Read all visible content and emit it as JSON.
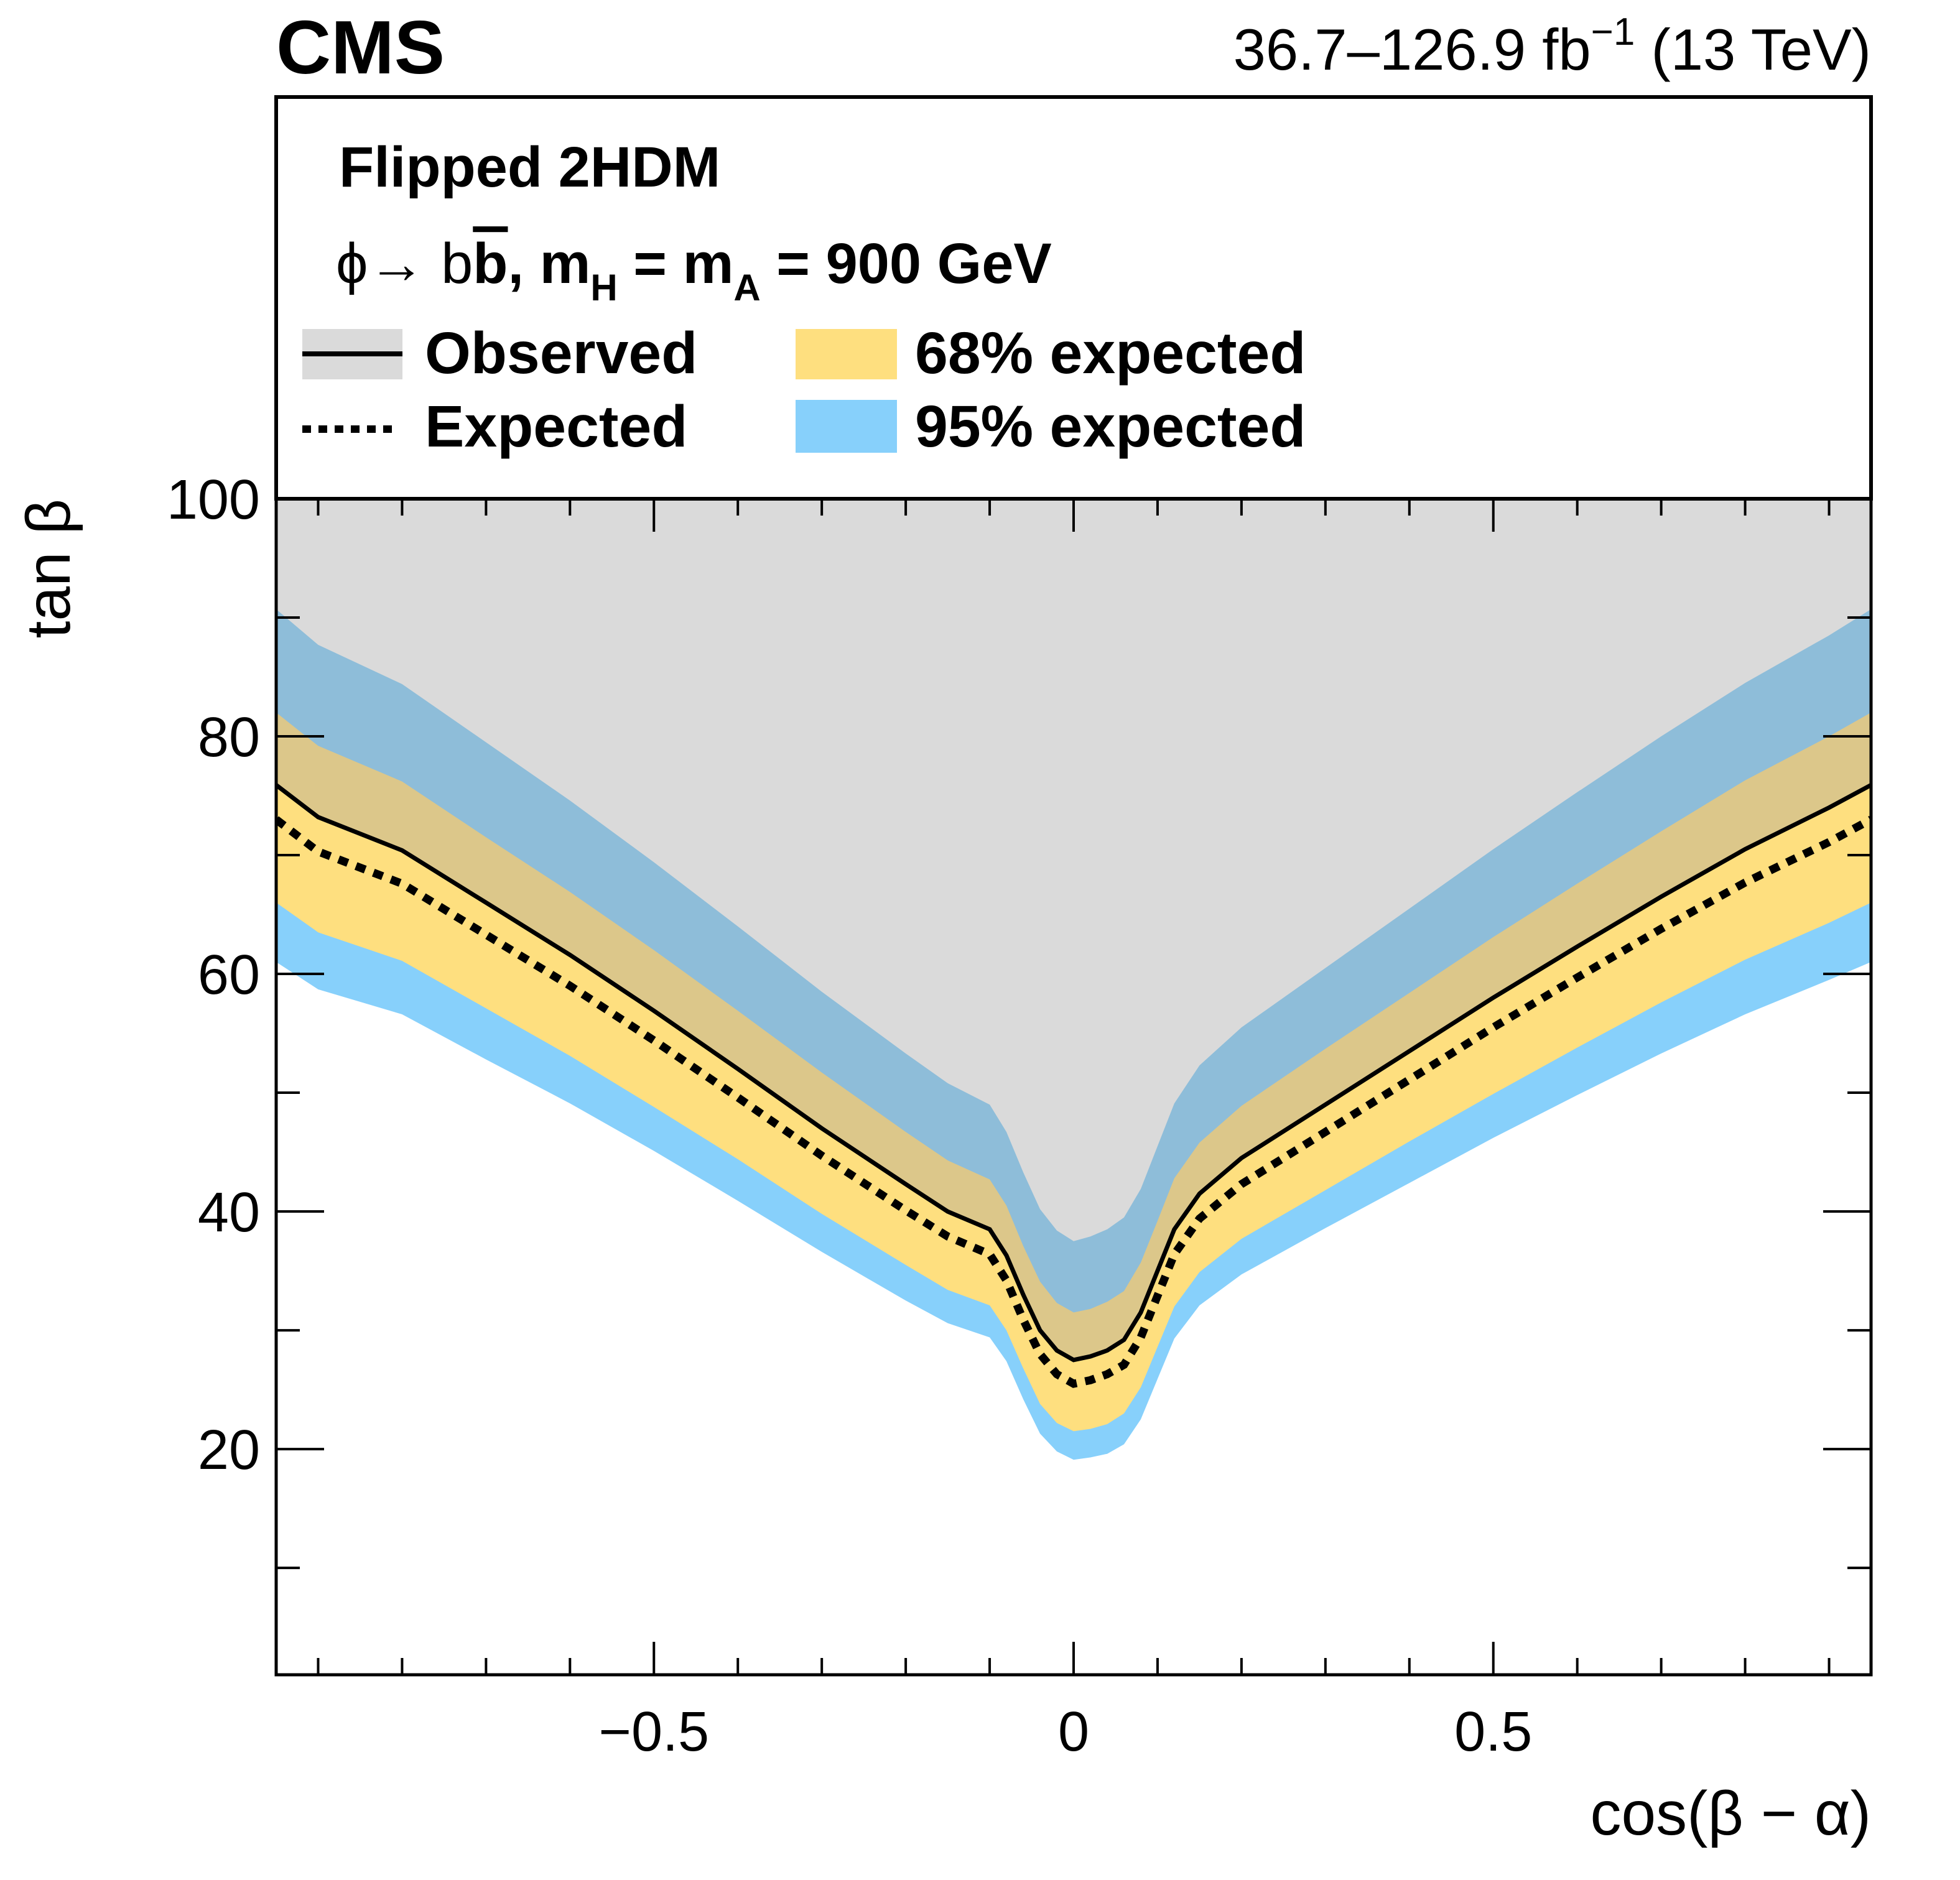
{
  "header": {
    "experiment": "CMS",
    "lumi_text": "36.7–126.9 fb",
    "lumi_sup": "−1",
    "energy": "(13 TeV)"
  },
  "legend": {
    "title": "Flipped 2HDM",
    "subtitle": {
      "part1": "ϕ→ b",
      "bbar": "b",
      "part2": ", m",
      "sub_h": "H",
      "part3": " = m",
      "sub_a": "A",
      "part4": " = 900 GeV"
    },
    "entries": [
      {
        "label": "Observed",
        "type": "line-solid-with-fill"
      },
      {
        "label": "Expected",
        "type": "line-dotted"
      },
      {
        "label": "68% expected",
        "type": "fill"
      },
      {
        "label": "95% expected",
        "type": "fill"
      }
    ]
  },
  "colors": {
    "excluded": "#dadada",
    "band68": "#fedf7f",
    "band95": "#87d0fb",
    "band68_excluded": "#dcc78a",
    "band95_excluded": "#8ebdd9",
    "line": "#000000"
  },
  "chart_data": {
    "type": "area",
    "title": "",
    "xlabel": "cos(β − α)",
    "ylabel": "tan β",
    "xlim": [
      -0.95,
      0.95
    ],
    "ylim": [
      1,
      100
    ],
    "xticks": [
      {
        "v": -0.5,
        "label": "−0.5"
      },
      {
        "v": 0,
        "label": "0"
      },
      {
        "v": 0.5,
        "label": "0.5"
      }
    ],
    "yticks": [
      {
        "v": 20,
        "label": "20"
      },
      {
        "v": 40,
        "label": "40"
      },
      {
        "v": 60,
        "label": "60"
      },
      {
        "v": 80,
        "label": "80"
      },
      {
        "v": 100,
        "label": "100"
      }
    ],
    "x": [
      -0.95,
      -0.9,
      -0.8,
      -0.7,
      -0.6,
      -0.5,
      -0.4,
      -0.3,
      -0.2,
      -0.15,
      -0.1,
      -0.08,
      -0.06,
      -0.04,
      -0.02,
      0,
      0.02,
      0.04,
      0.06,
      0.08,
      0.1,
      0.12,
      0.15,
      0.2,
      0.3,
      0.4,
      0.5,
      0.6,
      0.7,
      0.8,
      0.9,
      0.95
    ],
    "series": [
      {
        "name": "Observed",
        "values": [
          75.9,
          73.2,
          70.4,
          66.0,
          61.6,
          56.9,
          52.0,
          47.0,
          42.3,
          40.0,
          38.5,
          36.3,
          33.0,
          30.0,
          28.3,
          27.5,
          27.8,
          28.3,
          29.2,
          31.5,
          35.0,
          38.5,
          41.5,
          44.5,
          49.0,
          53.5,
          58.0,
          62.3,
          66.5,
          70.5,
          74.0,
          75.9
        ]
      },
      {
        "name": "Expected",
        "values": [
          73.0,
          70.3,
          67.6,
          63.3,
          59.0,
          54.4,
          49.6,
          44.7,
          40.1,
          37.9,
          36.4,
          34.2,
          30.9,
          28.0,
          26.3,
          25.5,
          25.8,
          26.3,
          27.1,
          29.4,
          32.9,
          36.4,
          39.4,
          42.3,
          46.7,
          51.1,
          55.5,
          59.7,
          63.8,
          67.7,
          71.1,
          73.0
        ]
      },
      {
        "name": "68% expected upper",
        "values": [
          82.0,
          79.2,
          76.2,
          71.5,
          66.9,
          62.0,
          56.9,
          51.7,
          46.7,
          44.3,
          42.7,
          40.5,
          37.1,
          34.1,
          32.3,
          31.5,
          31.8,
          32.4,
          33.3,
          35.7,
          39.2,
          42.8,
          45.8,
          48.9,
          53.7,
          58.4,
          63.1,
          67.6,
          72.0,
          76.3,
          80.0,
          82.0
        ]
      },
      {
        "name": "68% expected lower",
        "values": [
          66.0,
          63.5,
          61.1,
          57.1,
          53.1,
          48.8,
          44.4,
          39.8,
          35.5,
          33.4,
          32.1,
          30.0,
          26.8,
          23.8,
          22.2,
          21.5,
          21.7,
          22.1,
          23.0,
          25.2,
          28.6,
          32.0,
          34.9,
          37.7,
          41.8,
          45.9,
          49.9,
          53.8,
          57.6,
          61.2,
          64.3,
          66.0
        ]
      },
      {
        "name": "95% expected upper",
        "values": [
          90.7,
          87.7,
          84.4,
          79.5,
          74.6,
          69.4,
          64.0,
          58.5,
          53.3,
          50.8,
          49.0,
          46.7,
          43.3,
          40.2,
          38.4,
          37.5,
          37.9,
          38.5,
          39.5,
          41.9,
          45.5,
          49.1,
          52.3,
          55.5,
          60.5,
          65.5,
          70.5,
          75.3,
          80.0,
          84.5,
          88.5,
          90.7
        ]
      },
      {
        "name": "95% expected lower",
        "values": [
          61.0,
          58.7,
          56.6,
          52.8,
          49.1,
          45.1,
          40.9,
          36.6,
          32.5,
          30.6,
          29.4,
          27.4,
          24.2,
          21.3,
          19.8,
          19.1,
          19.3,
          19.6,
          20.4,
          22.5,
          25.9,
          29.3,
          32.1,
          34.7,
          38.6,
          42.4,
          46.2,
          49.8,
          53.3,
          56.6,
          59.5,
          61.0
        ]
      }
    ],
    "grid": false,
    "legend_position": "top"
  }
}
